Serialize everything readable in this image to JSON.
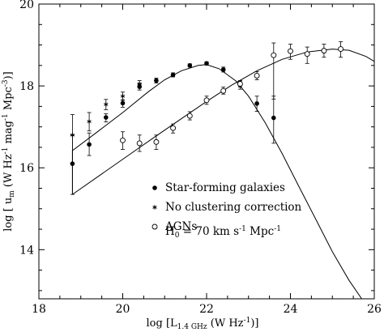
{
  "chart_data": {
    "type": "scatter",
    "xlim": [
      18,
      26
    ],
    "ylim": [
      12.8,
      20
    ],
    "xticks": [
      18,
      20,
      22,
      24,
      26
    ],
    "yticks": [
      14,
      16,
      18,
      20
    ],
    "grid": false,
    "legend_position": "lower-center",
    "xlabel": {
      "prefix": "log [L",
      "sub": "1.4 GHz",
      "suffix": " (W Hz",
      "sup": "-1",
      "end": ")]"
    },
    "ylabel": {
      "prefix": "log [ u",
      "sub": "m",
      "mid": " (W Hz",
      "sup1": "-1",
      "mid2": " mag",
      "sup2": "-1",
      "mid3": " Mpc",
      "sup3": "-3",
      "end": ")]"
    },
    "legend": [
      {
        "marker": "filled-circle",
        "label": "Star-forming galaxies"
      },
      {
        "marker": "asterisk",
        "label": "No clustering correction"
      },
      {
        "marker": "open-circle",
        "label": "AGNs"
      }
    ],
    "annotation": {
      "prefix": "H",
      "sub": "0",
      "mid": " = 70 km s",
      "sup1": "-1",
      "mid2": " Mpc",
      "sup2": "-1"
    },
    "series": [
      {
        "marker": "filled-circle",
        "points": [
          {
            "x": 18.8,
            "y": 16.1,
            "lo": 15.35,
            "hi": 16.8
          },
          {
            "x": 19.2,
            "y": 16.57,
            "lo": 16.3,
            "hi": 16.85
          },
          {
            "x": 19.6,
            "y": 17.23,
            "lo": 17.12,
            "hi": 17.32
          },
          {
            "x": 20.0,
            "y": 17.58,
            "lo": 17.48,
            "hi": 17.66
          },
          {
            "x": 20.4,
            "y": 17.98,
            "lo": 17.9,
            "hi": 18.05
          },
          {
            "x": 20.8,
            "y": 18.13,
            "lo": 18.07,
            "hi": 18.19
          },
          {
            "x": 21.2,
            "y": 18.27,
            "lo": 18.22,
            "hi": 18.32
          },
          {
            "x": 21.6,
            "y": 18.5,
            "lo": 18.46,
            "hi": 18.54
          },
          {
            "x": 22.0,
            "y": 18.55,
            "lo": 18.51,
            "hi": 18.59
          },
          {
            "x": 22.4,
            "y": 18.4,
            "lo": 18.34,
            "hi": 18.46
          },
          {
            "x": 22.8,
            "y": 18.03,
            "lo": 17.92,
            "hi": 18.12
          },
          {
            "x": 23.2,
            "y": 17.57,
            "lo": 17.38,
            "hi": 17.75
          },
          {
            "x": 23.6,
            "y": 17.22,
            "lo": 16.6,
            "hi": 17.75
          }
        ]
      },
      {
        "marker": "asterisk",
        "points": [
          {
            "x": 18.8,
            "y": 16.8,
            "lo": 16.1,
            "hi": 17.3
          },
          {
            "x": 19.2,
            "y": 17.13,
            "lo": 16.9,
            "hi": 17.35
          },
          {
            "x": 19.6,
            "y": 17.55,
            "lo": 17.42,
            "hi": 17.67
          },
          {
            "x": 20.0,
            "y": 17.75,
            "lo": 17.65,
            "hi": 17.85
          },
          {
            "x": 20.4,
            "y": 18.05,
            "lo": 17.97,
            "hi": 18.13
          }
        ]
      },
      {
        "marker": "open-circle",
        "points": [
          {
            "x": 20.0,
            "y": 16.67,
            "lo": 16.45,
            "hi": 16.88
          },
          {
            "x": 20.4,
            "y": 16.6,
            "lo": 16.4,
            "hi": 16.8
          },
          {
            "x": 20.8,
            "y": 16.63,
            "lo": 16.45,
            "hi": 16.8
          },
          {
            "x": 21.2,
            "y": 16.97,
            "lo": 16.85,
            "hi": 17.07
          },
          {
            "x": 21.6,
            "y": 17.27,
            "lo": 17.17,
            "hi": 17.37
          },
          {
            "x": 22.0,
            "y": 17.65,
            "lo": 17.55,
            "hi": 17.75
          },
          {
            "x": 22.4,
            "y": 17.88,
            "lo": 17.8,
            "hi": 17.97
          },
          {
            "x": 22.8,
            "y": 18.05,
            "lo": 17.97,
            "hi": 18.13
          },
          {
            "x": 23.2,
            "y": 18.25,
            "lo": 18.15,
            "hi": 18.35
          },
          {
            "x": 23.6,
            "y": 18.75,
            "lo": 17.68,
            "hi": 19.05
          },
          {
            "x": 24.0,
            "y": 18.85,
            "lo": 18.65,
            "hi": 19.02
          },
          {
            "x": 24.4,
            "y": 18.78,
            "lo": 18.55,
            "hi": 18.95
          },
          {
            "x": 24.8,
            "y": 18.86,
            "lo": 18.7,
            "hi": 19.02
          },
          {
            "x": 25.2,
            "y": 18.9,
            "lo": 18.7,
            "hi": 19.08
          }
        ]
      }
    ],
    "fit_lines": [
      {
        "name": "",
        "points": [
          [
            18.8,
            15.35
          ],
          [
            18.8,
            16.42
          ],
          [
            19.4,
            16.88
          ],
          [
            20.0,
            17.35
          ],
          [
            20.6,
            17.85
          ],
          [
            21.0,
            18.15
          ],
          [
            21.4,
            18.37
          ],
          [
            21.8,
            18.5
          ],
          [
            22.0,
            18.52
          ],
          [
            22.3,
            18.42
          ],
          [
            22.7,
            18.12
          ],
          [
            23.0,
            17.75
          ],
          [
            23.4,
            17.1
          ],
          [
            23.8,
            16.35
          ],
          [
            24.2,
            15.55
          ],
          [
            24.6,
            14.75
          ],
          [
            25.0,
            13.95
          ],
          [
            25.4,
            13.25
          ],
          [
            25.7,
            12.8
          ]
        ]
      },
      {
        "name": "",
        "points": [
          [
            18.8,
            15.35
          ],
          [
            19.5,
            15.85
          ],
          [
            20.2,
            16.35
          ],
          [
            20.8,
            16.78
          ],
          [
            21.4,
            17.2
          ],
          [
            22.0,
            17.62
          ],
          [
            22.6,
            18.02
          ],
          [
            23.2,
            18.37
          ],
          [
            23.8,
            18.65
          ],
          [
            24.4,
            18.83
          ],
          [
            25.0,
            18.9
          ],
          [
            25.4,
            18.87
          ],
          [
            25.8,
            18.72
          ],
          [
            26.0,
            18.6
          ]
        ]
      }
    ]
  }
}
